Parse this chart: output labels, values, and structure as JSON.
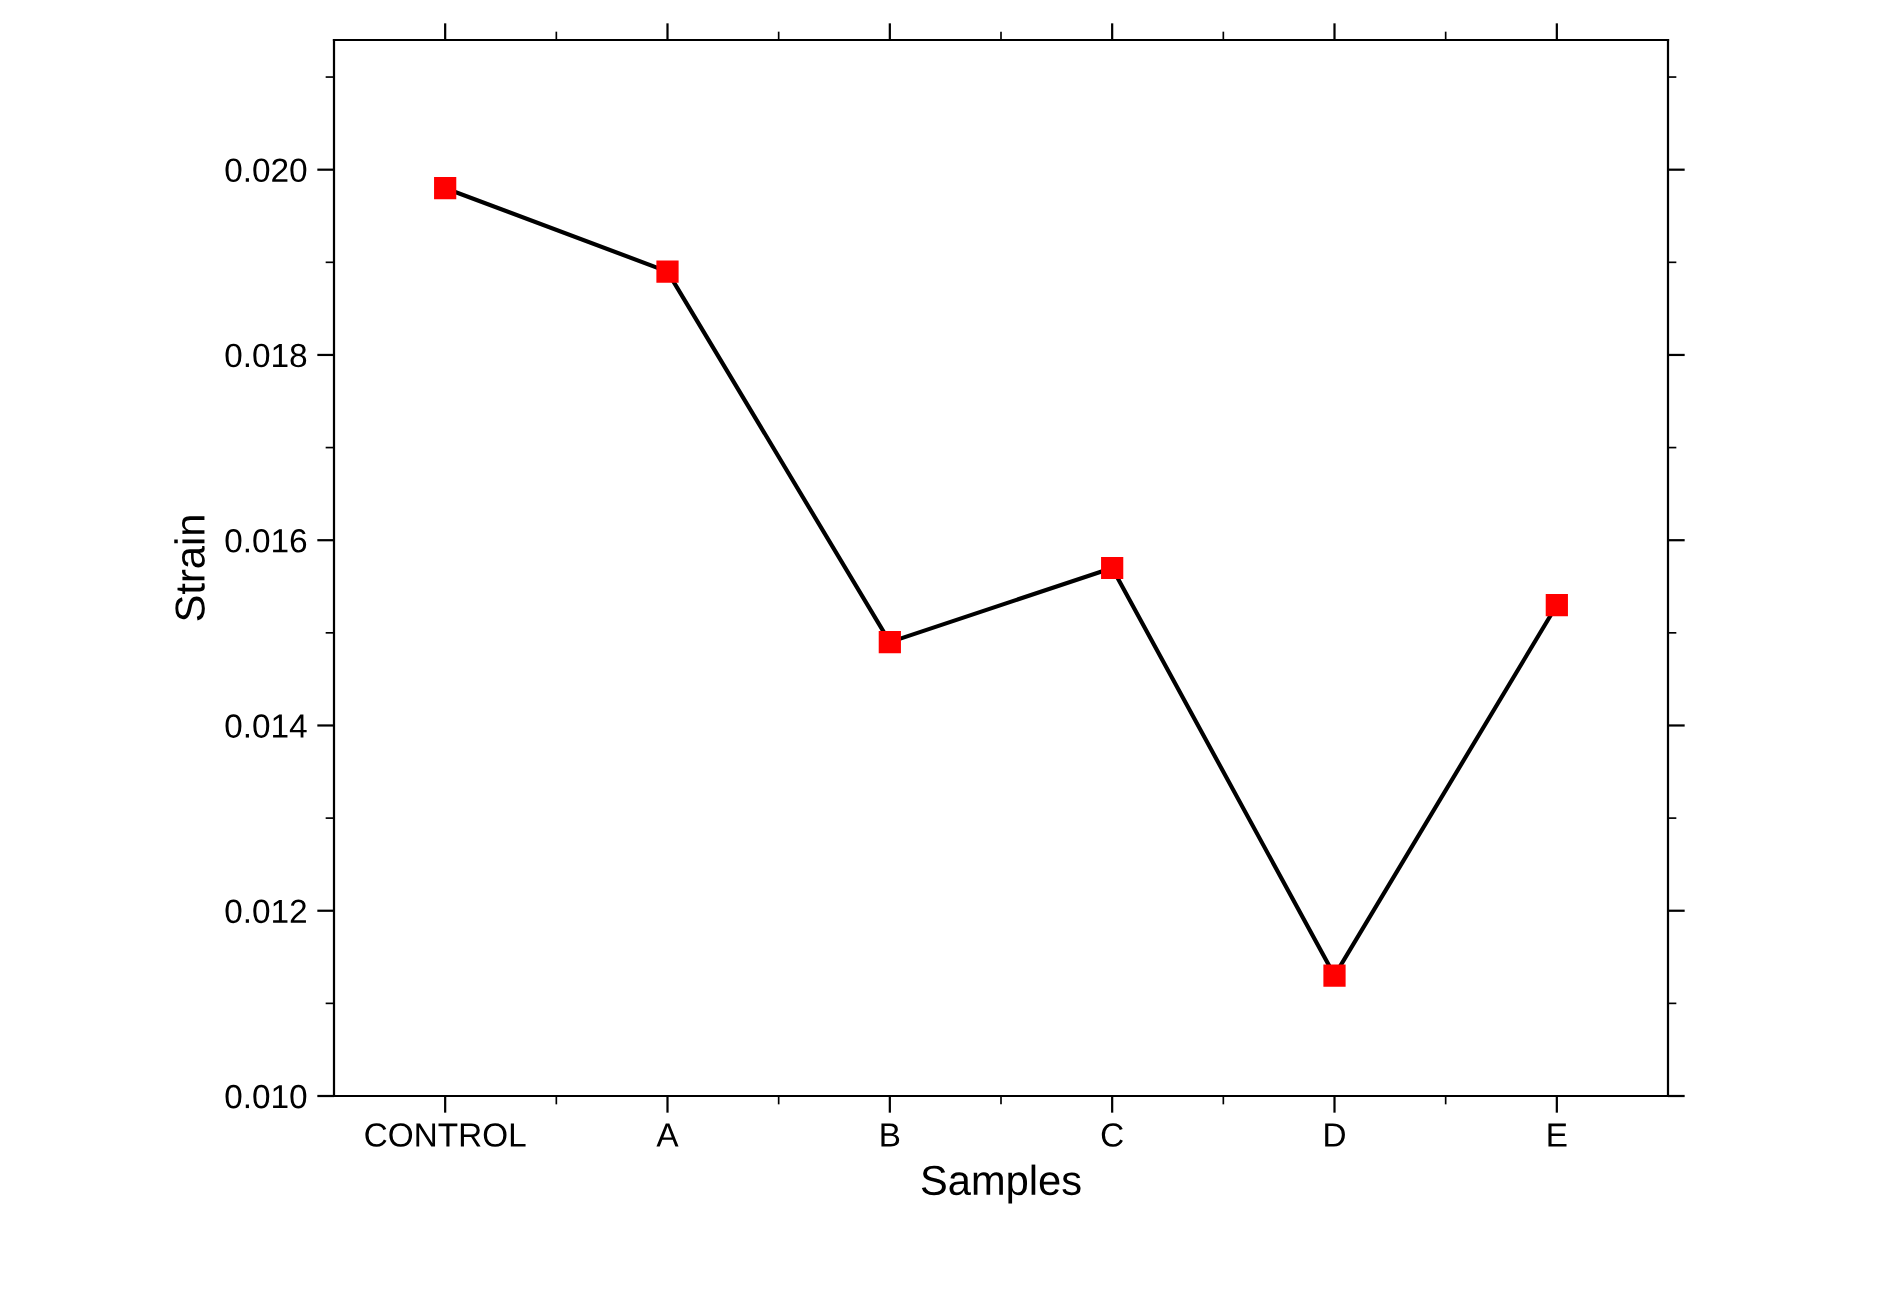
{
  "chart_data": {
    "type": "line",
    "xlabel": "Samples",
    "ylabel": "Strain",
    "categories": [
      "CONTROL",
      "A",
      "B",
      "C",
      "D",
      "E"
    ],
    "series": [
      {
        "color": "#ff0000",
        "values": [
          0.0198,
          0.0189,
          0.0149,
          0.0157,
          0.0113,
          0.0153
        ]
      }
    ],
    "ylim": [
      0.01,
      0.0214
    ],
    "yticks": [
      {
        "value": 0.01,
        "label": "0.010"
      },
      {
        "value": 0.012,
        "label": "0.012"
      },
      {
        "value": 0.014,
        "label": "0.014"
      },
      {
        "value": 0.016,
        "label": "0.016"
      },
      {
        "value": 0.018,
        "label": "0.018"
      },
      {
        "value": 0.02,
        "label": "0.020"
      }
    ],
    "marker": "square",
    "line_style": "solid",
    "grid": false,
    "legend": false
  }
}
